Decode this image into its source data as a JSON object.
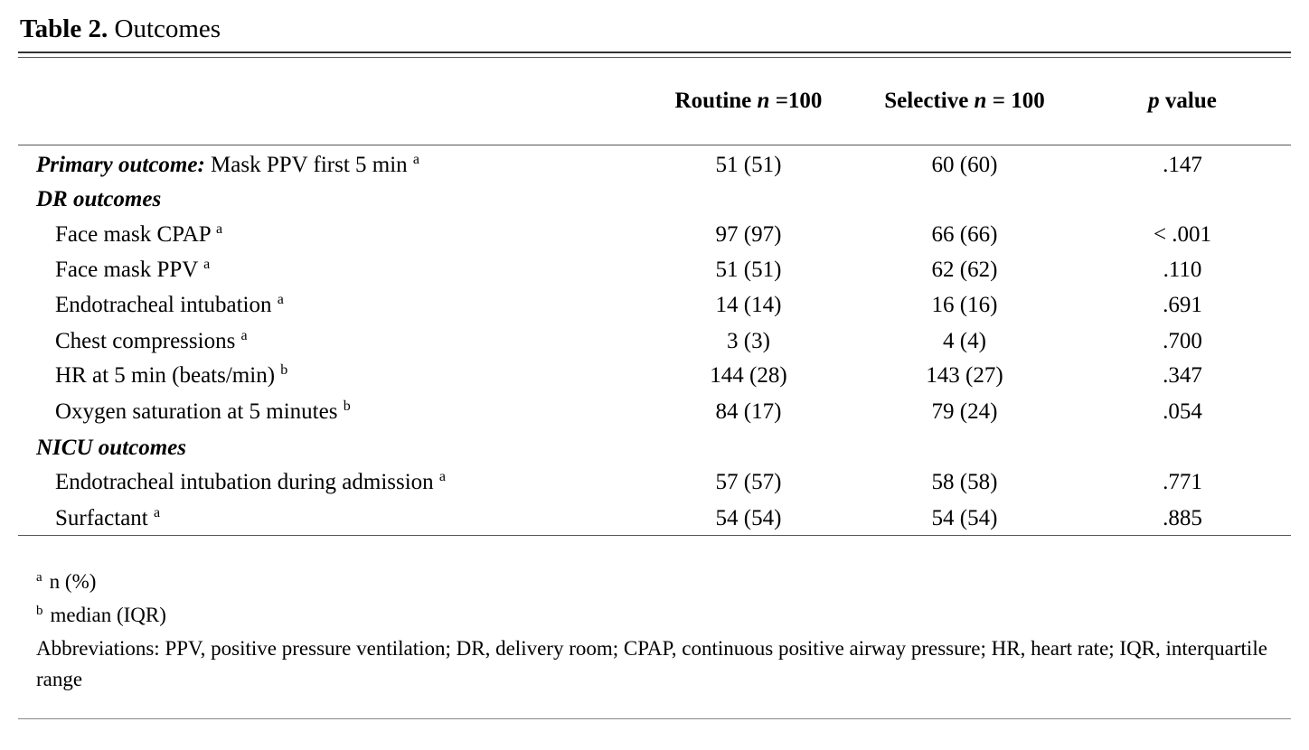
{
  "caption": {
    "label": "Table 2.",
    "title": "Outcomes"
  },
  "header": {
    "routine_pre": "Routine ",
    "routine_n": "n",
    "routine_post": " =100",
    "selective_pre": "Selective ",
    "selective_n": "n",
    "selective_post": " = 100",
    "p_italic": "p",
    "p_post": " value"
  },
  "rows": [
    {
      "label_head": "Primary outcome:",
      "label": " Mask PPV first 5 min ",
      "sup": "a",
      "routine": "51 (51)",
      "selective": "60 (60)",
      "p": ".147"
    },
    {
      "section": "DR outcomes"
    },
    {
      "label": "Face mask CPAP ",
      "sup": "a",
      "routine": "97 (97)",
      "selective": "66 (66)",
      "p": "< .001"
    },
    {
      "label": "Face mask PPV ",
      "sup": "a",
      "routine": "51 (51)",
      "selective": "62 (62)",
      "p": ".110"
    },
    {
      "label": "Endotracheal intubation ",
      "sup": "a",
      "routine": "14 (14)",
      "selective": "16 (16)",
      "p": ".691"
    },
    {
      "label": "Chest compressions ",
      "sup": "a",
      "routine": "3 (3)",
      "selective": "4 (4)",
      "p": ".700"
    },
    {
      "label": "HR at 5 min (beats/min) ",
      "sup": "b",
      "routine": "144 (28)",
      "selective": "143 (27)",
      "p": ".347"
    },
    {
      "label": "Oxygen saturation at 5 minutes ",
      "sup": "b",
      "routine": "84 (17)",
      "selective": "79 (24)",
      "p": ".054"
    },
    {
      "section": "NICU outcomes"
    },
    {
      "label": "Endotracheal intubation during admission ",
      "sup": "a",
      "routine": "57 (57)",
      "selective": "58 (58)",
      "p": ".771"
    },
    {
      "label": "Surfactant ",
      "sup": "a",
      "routine": "54 (54)",
      "selective": "54 (54)",
      "p": ".885"
    }
  ],
  "footnotes": {
    "a_mark": "a",
    "a_text": "n (%)",
    "b_mark": "b",
    "b_text": "median (IQR)",
    "abbreviations": "Abbreviations: PPV, positive pressure ventilation; DR, delivery room; CPAP, continuous positive airway pressure; HR, heart rate; IQR, interquartile range"
  }
}
